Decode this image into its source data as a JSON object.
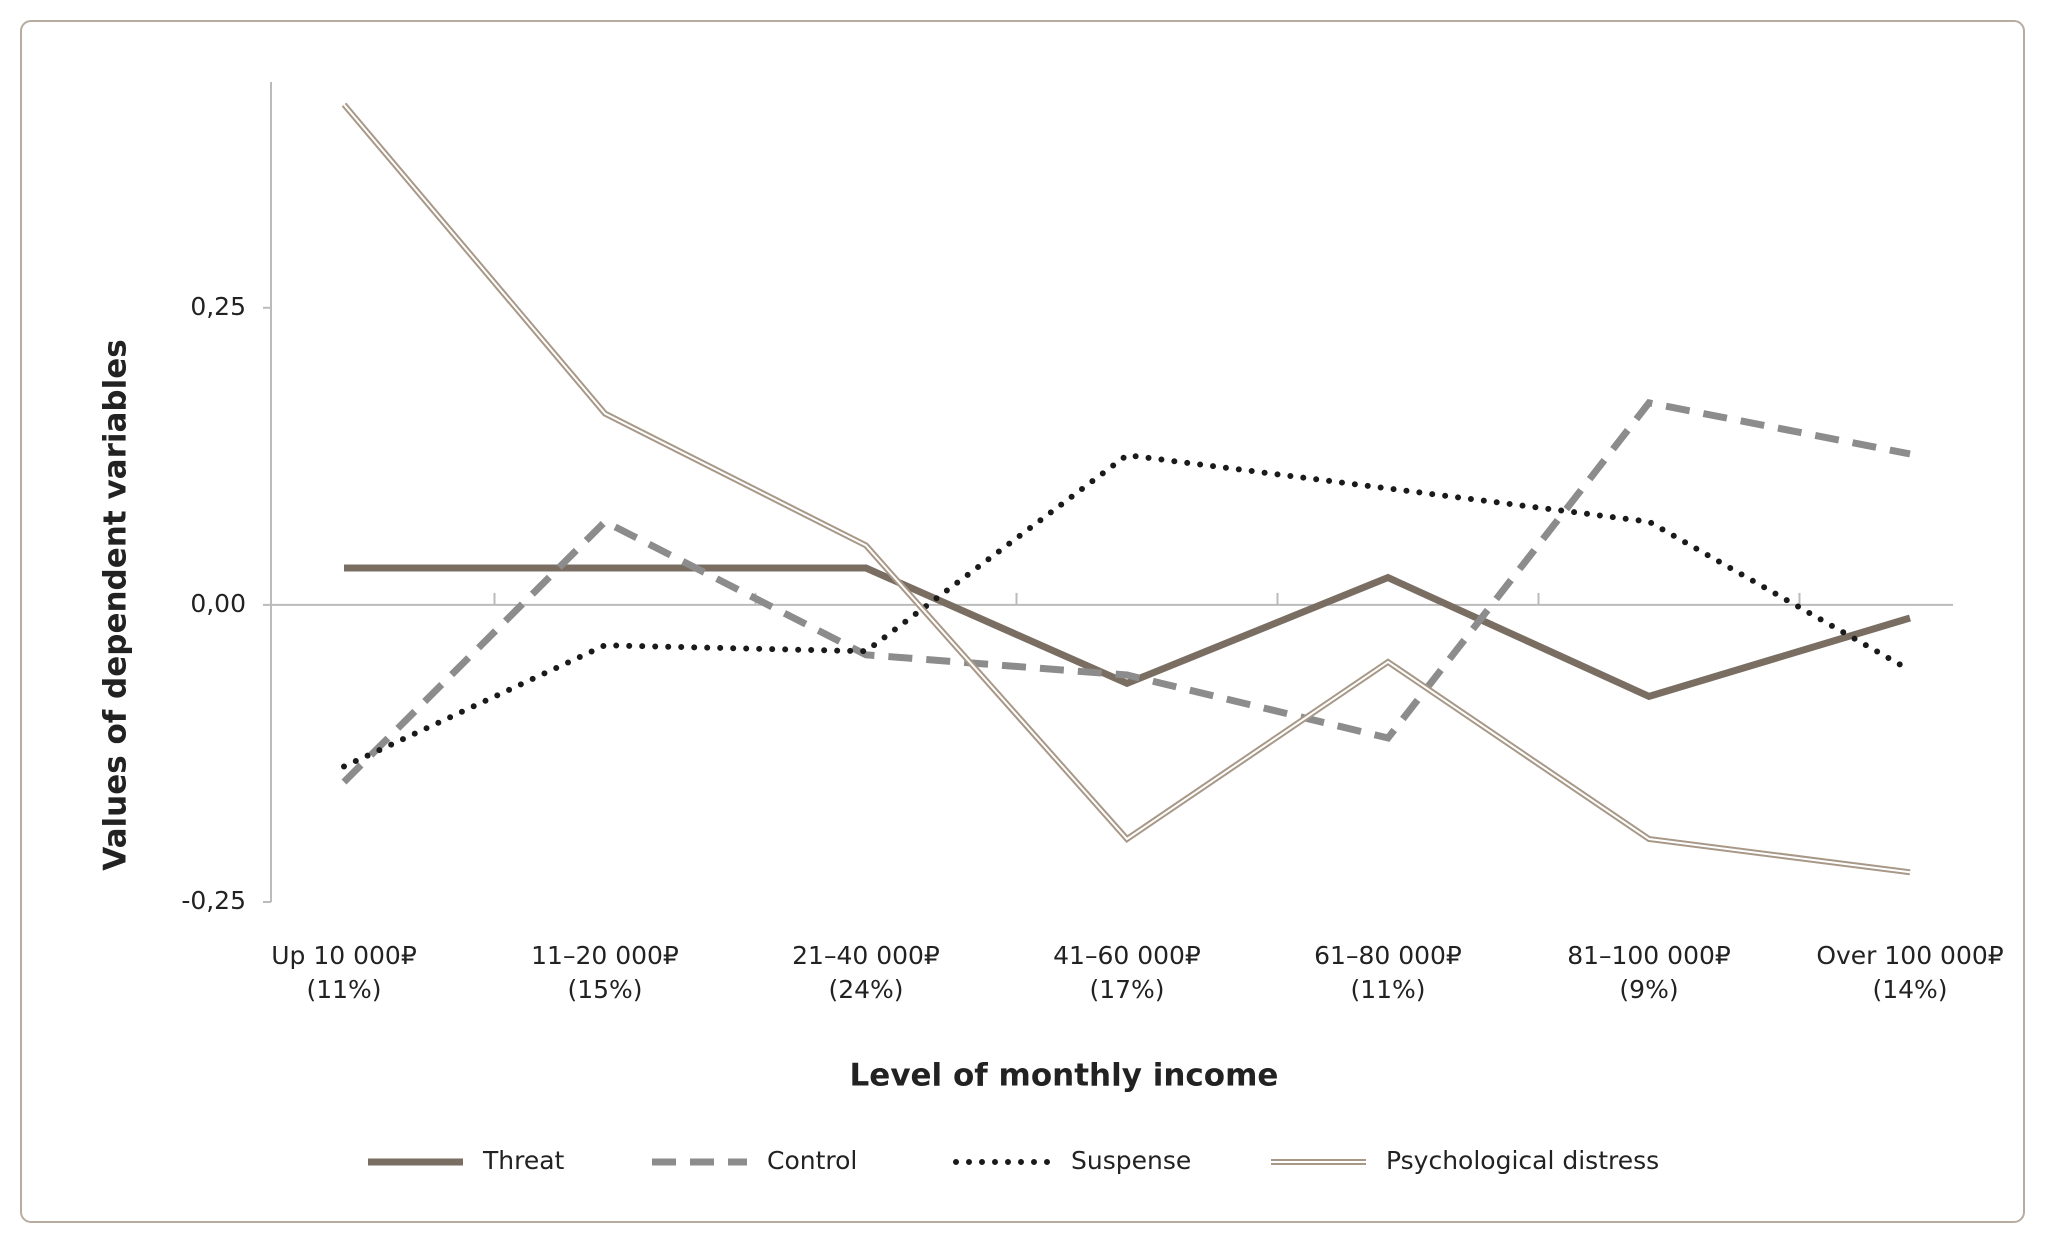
{
  "chart_data": {
    "type": "line",
    "x_label": "Level of monthly income",
    "y_label": "Values of dependent variables",
    "categories": [
      [
        "Up 10 000₽",
        "(11%)"
      ],
      [
        "11–20 000₽",
        "(15%)"
      ],
      [
        "21–40 000₽",
        "(24%)"
      ],
      [
        "41–60 000₽",
        "(17%)"
      ],
      [
        "61–80 000₽",
        "(11%)"
      ],
      [
        "81–100 000₽",
        "(9%)"
      ],
      [
        "Over 100 000₽",
        "(14%)"
      ]
    ],
    "ylim": [
      -0.25,
      0.44
    ],
    "yticks": [
      {
        "value": -0.25,
        "label": "-0,25"
      },
      {
        "value": 0,
        "label": "0,00"
      },
      {
        "value": 0.25,
        "label": "0,25"
      }
    ],
    "legend": "bottom",
    "series": [
      {
        "name": "Threat",
        "color": "#7a6e62",
        "style": "solid",
        "values": [
          0.031,
          0.031,
          0.031,
          -0.066,
          0.023,
          -0.077,
          -0.011
        ]
      },
      {
        "name": "Control",
        "color": "#8c8c8c",
        "style": "dashed",
        "values": [
          -0.149,
          0.07,
          -0.042,
          -0.059,
          -0.112,
          0.17,
          0.127
        ]
      },
      {
        "name": "Suspense",
        "color": "#1a1a1a",
        "style": "dotted",
        "values": [
          -0.136,
          -0.034,
          -0.039,
          0.126,
          0.098,
          0.07,
          -0.055
        ]
      },
      {
        "name": "Psychological distress",
        "color": "#a89888",
        "style": "double",
        "values": [
          0.421,
          0.161,
          0.05,
          -0.197,
          -0.048,
          -0.197,
          -0.225
        ]
      }
    ]
  }
}
